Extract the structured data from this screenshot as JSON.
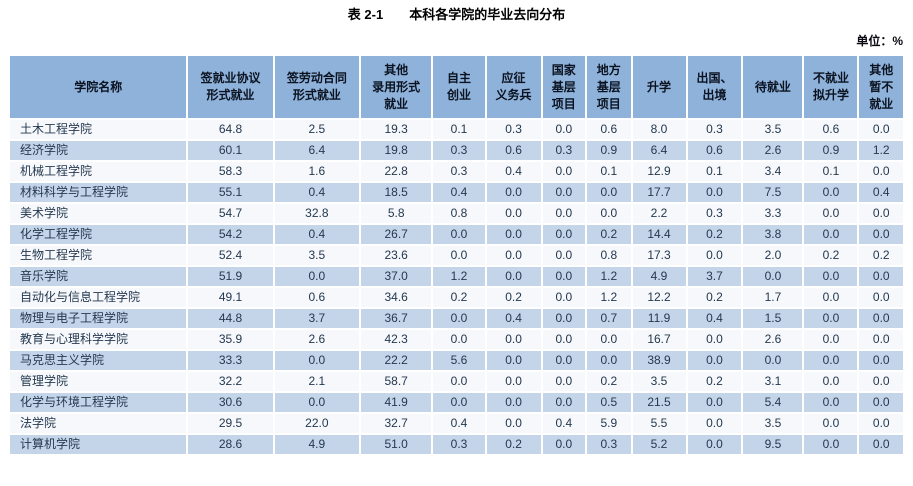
{
  "title": {
    "label": "表 2-1",
    "text": "本科各学院的毕业去向分布"
  },
  "unit_note": "单位：%",
  "colors": {
    "header-bg": "#8FB2DB",
    "band-bg": "#C4D5E9",
    "row-bg": "#F6F8FB",
    "cell-text": "#24384F",
    "header-text": "#0B1320",
    "page-bg": "#FFFFFF"
  },
  "table": {
    "columns": [
      "学院名称",
      "签就业协议\n形式就业",
      "签劳动合同\n形式就业",
      "其他\n录用形式\n就业",
      "自主\n创业",
      "应征\n义务兵",
      "国家\n基层\n项目",
      "地方\n基层\n项目",
      "升学",
      "出国、\n出境",
      "待就业",
      "不就业\n拟升学",
      "其他\n暂不\n就业"
    ],
    "col_widths": [
      "20.3%",
      "9.7%",
      "9.7%",
      "8.1%",
      "5.9%",
      "6.2%",
      "4.9%",
      "5.0%",
      "6.1%",
      "6.2%",
      "6.8%",
      "6.1%",
      "5.0%"
    ],
    "rows": [
      {
        "name": "土木工程学院",
        "values": [
          "64.8",
          "2.5",
          "19.3",
          "0.1",
          "0.3",
          "0.0",
          "0.6",
          "8.0",
          "0.3",
          "3.5",
          "0.6",
          "0.0"
        ]
      },
      {
        "name": "经济学院",
        "values": [
          "60.1",
          "6.4",
          "19.8",
          "0.3",
          "0.6",
          "0.3",
          "0.9",
          "6.4",
          "0.6",
          "2.6",
          "0.9",
          "1.2"
        ]
      },
      {
        "name": "机械工程学院",
        "values": [
          "58.3",
          "1.6",
          "22.8",
          "0.3",
          "0.4",
          "0.0",
          "0.1",
          "12.9",
          "0.1",
          "3.4",
          "0.1",
          "0.0"
        ]
      },
      {
        "name": "材料科学与工程学院",
        "values": [
          "55.1",
          "0.4",
          "18.5",
          "0.4",
          "0.0",
          "0.0",
          "0.0",
          "17.7",
          "0.0",
          "7.5",
          "0.0",
          "0.4"
        ]
      },
      {
        "name": "美术学院",
        "values": [
          "54.7",
          "32.8",
          "5.8",
          "0.8",
          "0.0",
          "0.0",
          "0.0",
          "2.2",
          "0.3",
          "3.3",
          "0.0",
          "0.0"
        ]
      },
      {
        "name": "化学工程学院",
        "values": [
          "54.2",
          "0.4",
          "26.7",
          "0.0",
          "0.0",
          "0.0",
          "0.2",
          "14.4",
          "0.2",
          "3.8",
          "0.0",
          "0.0"
        ]
      },
      {
        "name": "生物工程学院",
        "values": [
          "52.4",
          "3.5",
          "23.6",
          "0.0",
          "0.0",
          "0.0",
          "0.8",
          "17.3",
          "0.0",
          "2.0",
          "0.2",
          "0.2"
        ]
      },
      {
        "name": "音乐学院",
        "values": [
          "51.9",
          "0.0",
          "37.0",
          "1.2",
          "0.0",
          "0.0",
          "1.2",
          "4.9",
          "3.7",
          "0.0",
          "0.0",
          "0.0"
        ]
      },
      {
        "name": "自动化与信息工程学院",
        "values": [
          "49.1",
          "0.6",
          "34.6",
          "0.2",
          "0.2",
          "0.0",
          "1.2",
          "12.2",
          "0.2",
          "1.7",
          "0.0",
          "0.0"
        ]
      },
      {
        "name": "物理与电子工程学院",
        "values": [
          "44.8",
          "3.7",
          "36.7",
          "0.0",
          "0.4",
          "0.0",
          "0.7",
          "11.9",
          "0.4",
          "1.5",
          "0.0",
          "0.0"
        ]
      },
      {
        "name": "教育与心理科学学院",
        "values": [
          "35.9",
          "2.6",
          "42.3",
          "0.0",
          "0.0",
          "0.0",
          "0.0",
          "16.7",
          "0.0",
          "2.6",
          "0.0",
          "0.0"
        ]
      },
      {
        "name": "马克思主义学院",
        "values": [
          "33.3",
          "0.0",
          "22.2",
          "5.6",
          "0.0",
          "0.0",
          "0.0",
          "38.9",
          "0.0",
          "0.0",
          "0.0",
          "0.0"
        ]
      },
      {
        "name": "管理学院",
        "values": [
          "32.2",
          "2.1",
          "58.7",
          "0.0",
          "0.0",
          "0.0",
          "0.2",
          "3.5",
          "0.2",
          "3.1",
          "0.0",
          "0.0"
        ]
      },
      {
        "name": "化学与环境工程学院",
        "values": [
          "30.6",
          "0.0",
          "41.9",
          "0.0",
          "0.0",
          "0.0",
          "0.5",
          "21.5",
          "0.0",
          "5.4",
          "0.0",
          "0.0"
        ]
      },
      {
        "name": "法学院",
        "values": [
          "29.5",
          "22.0",
          "32.7",
          "0.4",
          "0.0",
          "0.4",
          "5.9",
          "5.5",
          "0.0",
          "3.5",
          "0.0",
          "0.0"
        ]
      },
      {
        "name": "计算机学院",
        "values": [
          "28.6",
          "4.9",
          "51.0",
          "0.3",
          "0.2",
          "0.0",
          "0.3",
          "5.2",
          "0.0",
          "9.5",
          "0.0",
          "0.0"
        ]
      }
    ]
  }
}
